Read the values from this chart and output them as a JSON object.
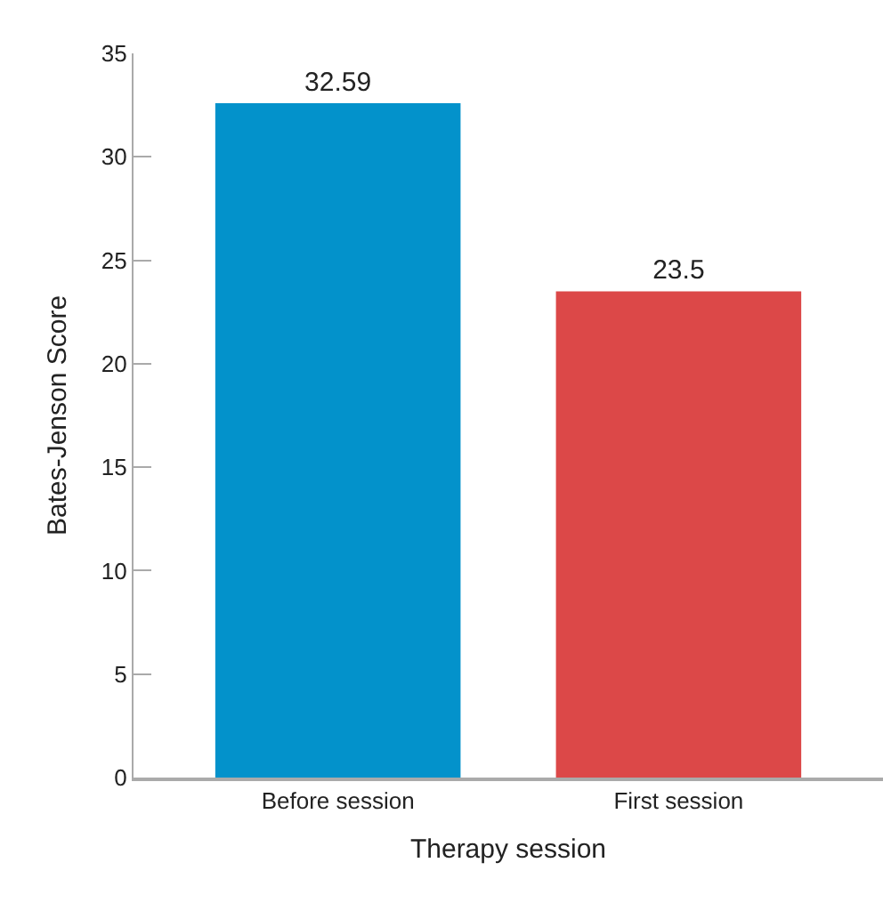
{
  "chart_data": {
    "type": "bar",
    "xlabel": "Therapy session",
    "ylabel": "Bates-Jenson Score",
    "categories": [
      "Before session",
      "First session"
    ],
    "values": [
      32.59,
      23.5
    ],
    "colors": [
      "#0392cb",
      "#dc4848"
    ],
    "data_labels": true,
    "ylim": [
      0,
      35
    ],
    "yticks": [
      0,
      5,
      10,
      15,
      20,
      25,
      30,
      35
    ]
  }
}
